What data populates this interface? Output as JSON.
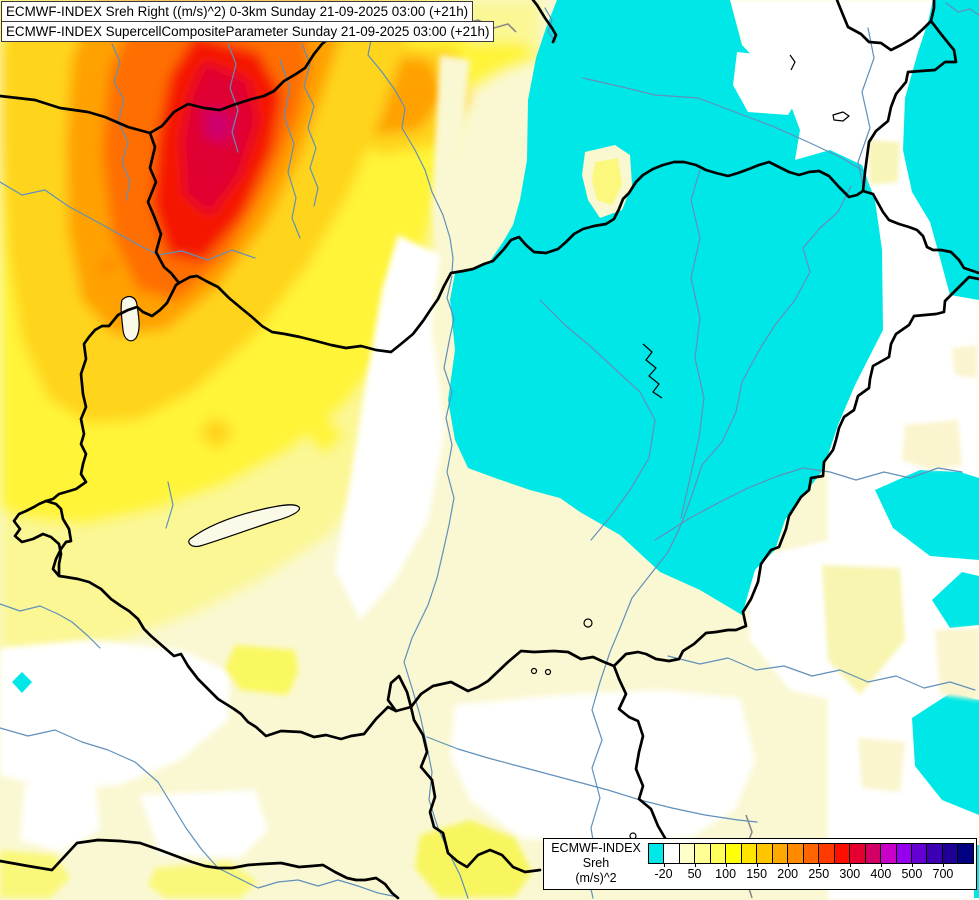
{
  "header": {
    "line1": "ECMWF-INDEX Sreh Right ((m/s)^2) 0-3km Sunday 21-09-2025 03:00 (+21h)",
    "line2": "ECMWF-INDEX SupercellCompositeParameter Sunday 21-09-2025 03:00 (+21h)"
  },
  "legend": {
    "model": "ECMWF-INDEX",
    "parameter": "Sreh",
    "units": "(m/s)^2",
    "colorbar": {
      "n_cells": 21,
      "cell_colors": [
        "#00E8E8",
        "#FFFFFF",
        "#FFFFC8",
        "#FFFF96",
        "#FFFF5A",
        "#FFFF0A",
        "#FFE400",
        "#FFC600",
        "#FFA800",
        "#FF8A00",
        "#FF6400",
        "#FF3A00",
        "#FF0E00",
        "#E60032",
        "#D20064",
        "#C800C8",
        "#9600F0",
        "#6400D2",
        "#3C00B4",
        "#1E0096",
        "#000080"
      ],
      "ticks": [
        {
          "label": "-20",
          "boundary": 1
        },
        {
          "label": "50",
          "boundary": 3
        },
        {
          "label": "100",
          "boundary": 5
        },
        {
          "label": "150",
          "boundary": 7
        },
        {
          "label": "200",
          "boundary": 9
        },
        {
          "label": "250",
          "boundary": 11
        },
        {
          "label": "300",
          "boundary": 13
        },
        {
          "label": "400",
          "boundary": 15
        },
        {
          "label": "500",
          "boundary": 17
        },
        {
          "label": "700",
          "boundary": 19
        }
      ]
    }
  },
  "map": {
    "palette": {
      "background_cream": "#FAF8D2",
      "negative_cyan": "#00E7E7",
      "white_patch": "#FFFFFF",
      "light_yellow": "#FBF795",
      "yellow": "#FFF437",
      "gold": "#FFD41E",
      "orange": "#FFA104",
      "deep_orange": "#FF6E00",
      "red": "#F51900",
      "crimson": "#E00030",
      "magenta": "#CE0070",
      "river_blue": "#6090BB",
      "border_black": "#000000"
    }
  }
}
